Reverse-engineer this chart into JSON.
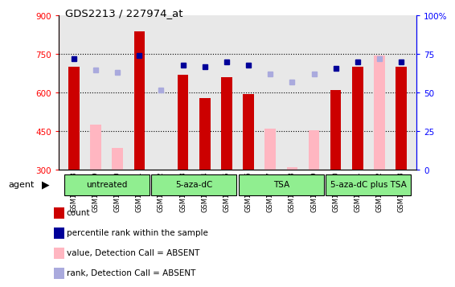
{
  "title": "GDS2213 / 227974_at",
  "samples": [
    "GSM118418",
    "GSM118419",
    "GSM118420",
    "GSM118421",
    "GSM118422",
    "GSM118423",
    "GSM118424",
    "GSM118425",
    "GSM118426",
    "GSM118427",
    "GSM118428",
    "GSM118429",
    "GSM118430",
    "GSM118431",
    "GSM118432",
    "GSM118433"
  ],
  "count_values": [
    700,
    null,
    null,
    840,
    null,
    670,
    580,
    660,
    595,
    null,
    null,
    null,
    610,
    700,
    null,
    700
  ],
  "count_absent_values": [
    null,
    475,
    385,
    null,
    null,
    null,
    null,
    null,
    null,
    460,
    310,
    455,
    null,
    null,
    745,
    null
  ],
  "rank_present_values": [
    72,
    null,
    null,
    74,
    null,
    68,
    67,
    70,
    68,
    null,
    null,
    null,
    66,
    70,
    null,
    70
  ],
  "rank_absent_values": [
    null,
    65,
    63,
    null,
    52,
    null,
    null,
    null,
    null,
    62,
    57,
    62,
    null,
    null,
    72,
    null
  ],
  "groups": [
    {
      "label": "untreated",
      "start": 0,
      "end": 3
    },
    {
      "label": "5-aza-dC",
      "start": 4,
      "end": 7
    },
    {
      "label": "TSA",
      "start": 8,
      "end": 11
    },
    {
      "label": "5-aza-dC plus TSA",
      "start": 12,
      "end": 15
    }
  ],
  "ylim_left": [
    300,
    900
  ],
  "ylim_right": [
    0,
    100
  ],
  "yticks_left": [
    300,
    450,
    600,
    750,
    900
  ],
  "yticks_right": [
    0,
    25,
    50,
    75,
    100
  ],
  "bar_width": 0.5,
  "count_color": "#cc0000",
  "count_absent_color": "#ffb6c1",
  "rank_present_color": "#000099",
  "rank_absent_color": "#aaaadd",
  "group_fill_color": "#90EE90",
  "group_edge_color": "#000000",
  "background_color": "#ffffff",
  "plot_bg_color": "#e8e8e8",
  "grid_ticks": [
    450,
    600,
    750
  ]
}
